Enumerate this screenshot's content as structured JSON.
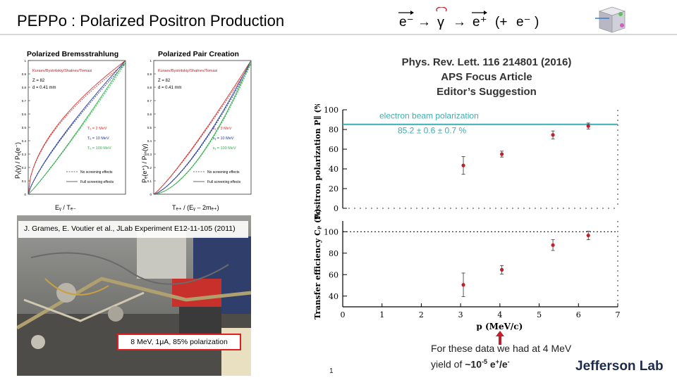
{
  "slide": {
    "title": "PEPPo : Polarized Positron Production",
    "formula": {
      "e_minus": "e⁻",
      "arrow": "→",
      "gamma": "γ",
      "e_plus": "e⁺",
      "paren_open": "(+",
      "e_minus2": "e⁻",
      "paren_close": ")"
    },
    "page_number": "1",
    "logo_text": "Jefferson Lab"
  },
  "citation": {
    "line1": "Phys. Rev. Lett. 116 214801 (2016)",
    "line2": "APS Focus Article",
    "line3": "Editor’s Suggestion"
  },
  "footnote": {
    "text1": "For these data we had at 4 MeV yield of ",
    "yield": "~10",
    "exp": "-5",
    "tail": " e",
    "sup_plus": "+",
    "slash": "/e",
    "sup_minus": "-"
  },
  "photo": {
    "caption": "J. Grames, E. Voutier et al., JLab Experiment E12-11-105 (2011)",
    "badge": "8 MeV, 1μA, 85% polarization"
  },
  "theory": {
    "left": {
      "title": "Polarized Bremsstrahlung",
      "legend_header": "Kuraev/Bystritskiy/Shatnev/Tomasi",
      "z": "Z = 82",
      "d": "d = 0.41 mm",
      "energies": [
        "Tₑ = 2 MeV",
        "Tₑ = 10 MeV",
        "Tₑ = 100 MeV"
      ],
      "style_legend": [
        "No screening effects",
        "Full screening effects"
      ],
      "xlabel": "Eᵧ / Tₑ₋",
      "ylabel": "Pᵧ(γ) / Pₑ(e⁻)"
    },
    "right": {
      "title": "Polarized Pair Creation",
      "legend_header": "Kuraev/Bystritskiy/Shatnev/Tomasi",
      "z": "Z = 82",
      "d": "d = 0.41 mm",
      "energies": [
        "εᵧ = 3 MeV",
        "εᵧ = 10 MeV",
        "εᵧ = 100 MeV"
      ],
      "style_legend": [
        "No screening effects",
        "Full screening effects"
      ],
      "xlabel": "Tₑ₊ / (Eᵧ – 2mₑ₊)",
      "ylabel": "Pₑ(e⁺) / Pₗᵢₙ(γ)"
    },
    "yticks": [
      "0",
      "0.1",
      "0.2",
      "0.3",
      "0.4",
      "0.5",
      "0.6",
      "0.7",
      "0.8",
      "0.9",
      "1"
    ],
    "colors": [
      "#d8322f",
      "#1f3a9a",
      "#2fae4a"
    ]
  },
  "chart_data": [
    {
      "type": "scatter",
      "title": "",
      "xlabel": "",
      "ylabel": "Positron polarization P∥ (%)",
      "xlim": [
        0,
        7
      ],
      "ylim": [
        0,
        100
      ],
      "yticks": [
        0,
        20,
        40,
        60,
        80,
        100
      ],
      "reference_line": {
        "value": 85.2,
        "label": "electron beam polarization",
        "value_label": "85.2 ± 0.6 ± 0.7 %",
        "color": "#3aaeb0"
      },
      "points": [
        {
          "x": 3.07,
          "y": 43.5,
          "err": 9
        },
        {
          "x": 4.05,
          "y": 55.0,
          "err": 3
        },
        {
          "x": 5.35,
          "y": 74.5,
          "err": 4
        },
        {
          "x": 6.25,
          "y": 83.5,
          "err": 3
        }
      ],
      "marker_color": "#c0202a"
    },
    {
      "type": "scatter",
      "title": "",
      "xlabel": "p  (MeV/c)",
      "ylabel": "Transfer efficiency Cₚ (%)",
      "xlim": [
        0,
        7
      ],
      "ylim": [
        30,
        110
      ],
      "yticks": [
        40,
        60,
        80,
        100
      ],
      "xticks": [
        0,
        1,
        2,
        3,
        4,
        5,
        6,
        7
      ],
      "reference_line": {
        "value": 100
      },
      "points": [
        {
          "x": 3.07,
          "y": 50.5,
          "err": 11
        },
        {
          "x": 4.05,
          "y": 64.5,
          "err": 4
        },
        {
          "x": 5.35,
          "y": 87.5,
          "err": 5
        },
        {
          "x": 6.25,
          "y": 96.5,
          "err": 4
        }
      ],
      "marker_color": "#c0202a"
    }
  ]
}
